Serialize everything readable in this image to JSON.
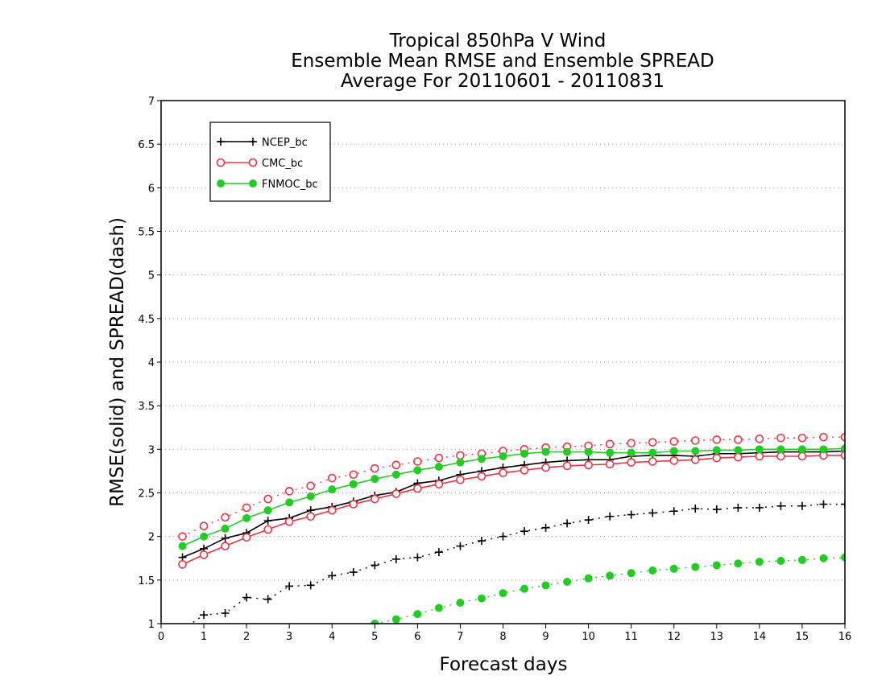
{
  "chart_data": {
    "type": "line",
    "title": [
      "Tropical 850hPa V Wind",
      "Ensemble Mean RMSE and Ensemble SPREAD",
      "Average For 20110601 - 20110831"
    ],
    "xlabel": "Forecast days",
    "ylabel": "RMSE(solid) and SPREAD(dash)",
    "xlim": [
      0,
      16
    ],
    "ylim": [
      1,
      7
    ],
    "xticks": [
      "0",
      "1",
      "2",
      "3",
      "4",
      "5",
      "6",
      "7",
      "8",
      "9",
      "10",
      "11",
      "12",
      "13",
      "14",
      "15",
      "16"
    ],
    "yticks": [
      "1",
      "1.5",
      "2",
      "2.5",
      "3",
      "3.5",
      "4",
      "4.5",
      "5",
      "5.5",
      "6",
      "6.5",
      "7"
    ],
    "grid": "horizontal-dotted",
    "legend_position": "top-left",
    "x": [
      0.5,
      1,
      1.5,
      2,
      2.5,
      3,
      3.5,
      4,
      4.5,
      5,
      5.5,
      6,
      6.5,
      7,
      7.5,
      8,
      8.5,
      9,
      9.5,
      10,
      10.5,
      11,
      11.5,
      12,
      12.5,
      13,
      13.5,
      14,
      14.5,
      15,
      15.5,
      16
    ],
    "series": [
      {
        "name": "NCEP_bc",
        "color": "#000000",
        "marker": "plus",
        "rmse": [
          1.76,
          1.86,
          1.98,
          2.04,
          2.18,
          2.21,
          2.3,
          2.34,
          2.4,
          2.47,
          2.51,
          2.61,
          2.64,
          2.71,
          2.75,
          2.79,
          2.82,
          2.85,
          2.87,
          2.88,
          2.88,
          2.92,
          2.93,
          2.93,
          2.92,
          2.95,
          2.95,
          2.96,
          2.97,
          2.97,
          2.97,
          2.98
        ],
        "spread": [
          0.93,
          1.1,
          1.12,
          1.3,
          1.28,
          1.43,
          1.44,
          1.55,
          1.59,
          1.67,
          1.74,
          1.76,
          1.82,
          1.89,
          1.95,
          2.0,
          2.06,
          2.1,
          2.15,
          2.19,
          2.23,
          2.25,
          2.27,
          2.29,
          2.32,
          2.31,
          2.33,
          2.33,
          2.35,
          2.35,
          2.37,
          2.37
        ]
      },
      {
        "name": "CMC_bc",
        "color": "#ee3344",
        "marker": "open-circle",
        "rmse": [
          1.68,
          1.79,
          1.89,
          1.99,
          2.08,
          2.17,
          2.23,
          2.3,
          2.37,
          2.43,
          2.49,
          2.55,
          2.6,
          2.65,
          2.69,
          2.73,
          2.76,
          2.79,
          2.81,
          2.82,
          2.83,
          2.85,
          2.86,
          2.87,
          2.88,
          2.9,
          2.91,
          2.92,
          2.92,
          2.92,
          2.93,
          2.93
        ],
        "spread": [
          2.0,
          2.12,
          2.22,
          2.33,
          2.43,
          2.52,
          2.58,
          2.67,
          2.71,
          2.78,
          2.82,
          2.86,
          2.9,
          2.93,
          2.95,
          2.98,
          3.0,
          3.02,
          3.03,
          3.04,
          3.06,
          3.07,
          3.08,
          3.09,
          3.1,
          3.11,
          3.11,
          3.12,
          3.13,
          3.13,
          3.14,
          3.14
        ]
      },
      {
        "name": "FNMOC_bc",
        "color": "#22cc22",
        "marker": "filled-circle",
        "rmse": [
          1.89,
          2.0,
          2.09,
          2.21,
          2.3,
          2.39,
          2.46,
          2.54,
          2.6,
          2.66,
          2.71,
          2.76,
          2.8,
          2.85,
          2.89,
          2.92,
          2.95,
          2.97,
          2.97,
          2.97,
          2.96,
          2.96,
          2.96,
          2.98,
          2.98,
          2.99,
          2.99,
          3.0,
          3.0,
          3.0,
          3.0,
          3.01
        ],
        "spread": [
          null,
          null,
          null,
          null,
          null,
          null,
          null,
          null,
          null,
          1.0,
          1.05,
          1.11,
          1.18,
          1.24,
          1.29,
          1.35,
          1.4,
          1.44,
          1.48,
          1.52,
          1.55,
          1.58,
          1.61,
          1.63,
          1.65,
          1.67,
          1.69,
          1.71,
          1.72,
          1.73,
          1.75,
          1.76
        ]
      }
    ]
  }
}
